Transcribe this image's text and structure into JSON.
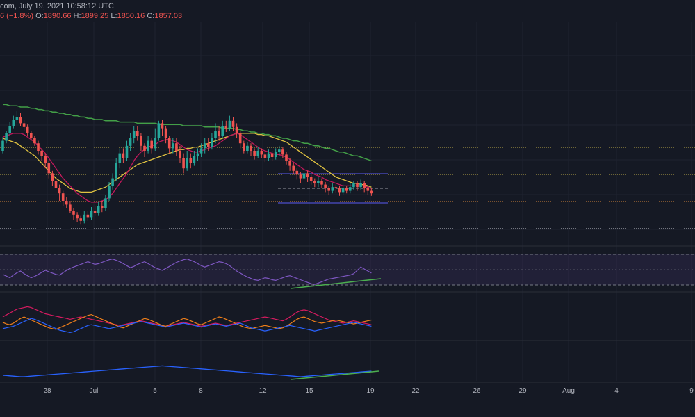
{
  "header": {
    "source_datetime": "com, July 19, 2021 10:58:12 UTC",
    "change": "6 (−1.8%)",
    "open_label": "O:",
    "open": "1890.66",
    "high_label": "H:",
    "high": "1899.25",
    "low_label": "L:",
    "low": "1850.16",
    "close_label": "C:",
    "close": "1857.03"
  },
  "colors": {
    "background": "#151924",
    "grid": "#1f2330",
    "candle_up": "#26a69a",
    "candle_down": "#ef5350",
    "ma_red": "#c2185b",
    "ma_yellow": "#e0c341",
    "ma_green": "#43a047",
    "hline_yellow": "#c8b44a",
    "hline_orange": "#e08a3a",
    "hline_white": "#d1d4dc",
    "channel_blue": "#5b5bf5",
    "rsi_line": "#7e57c2",
    "rsi_band": "#7e57c2",
    "trend_green": "#4caf50",
    "dmi_red": "#d81b60",
    "dmi_orange": "#ef7f1a",
    "dmi_blue": "#2962ff",
    "adx_blue": "#2962ff"
  },
  "chart_data": {
    "type": "candlestick",
    "x_axis_ticks": [
      "28",
      "Jul",
      "5",
      "8",
      "12",
      "15",
      "19",
      "22",
      "26",
      "29",
      "Aug",
      "4",
      "9"
    ],
    "price_candles": [
      [
        0,
        0.6,
        0.68,
        0.58,
        0.71
      ],
      [
        1,
        0.68,
        0.74,
        0.66,
        0.76
      ],
      [
        2,
        0.74,
        0.8,
        0.72,
        0.83
      ],
      [
        3,
        0.8,
        0.85,
        0.78,
        0.88
      ],
      [
        4,
        0.85,
        0.87,
        0.82,
        0.92
      ],
      [
        5,
        0.87,
        0.82,
        0.8,
        0.9
      ],
      [
        6,
        0.82,
        0.79,
        0.76,
        0.85
      ],
      [
        7,
        0.79,
        0.74,
        0.72,
        0.81
      ],
      [
        8,
        0.74,
        0.7,
        0.68,
        0.76
      ],
      [
        9,
        0.7,
        0.66,
        0.64,
        0.72
      ],
      [
        10,
        0.66,
        0.6,
        0.57,
        0.68
      ],
      [
        11,
        0.6,
        0.56,
        0.52,
        0.62
      ],
      [
        12,
        0.56,
        0.5,
        0.46,
        0.58
      ],
      [
        13,
        0.5,
        0.42,
        0.38,
        0.52
      ],
      [
        14,
        0.42,
        0.36,
        0.32,
        0.44
      ],
      [
        15,
        0.36,
        0.3,
        0.28,
        0.39
      ],
      [
        16,
        0.3,
        0.26,
        0.2,
        0.33
      ],
      [
        17,
        0.26,
        0.2,
        0.16,
        0.28
      ],
      [
        18,
        0.2,
        0.17,
        0.14,
        0.23
      ],
      [
        19,
        0.17,
        0.12,
        0.1,
        0.2
      ],
      [
        20,
        0.12,
        0.09,
        0.05,
        0.14
      ],
      [
        21,
        0.09,
        0.06,
        0.03,
        0.11
      ],
      [
        22,
        0.06,
        0.04,
        0.01,
        0.08
      ],
      [
        23,
        0.04,
        0.09,
        0.02,
        0.12
      ],
      [
        24,
        0.09,
        0.07,
        0.04,
        0.12
      ],
      [
        25,
        0.07,
        0.12,
        0.05,
        0.15
      ],
      [
        26,
        0.12,
        0.1,
        0.08,
        0.16
      ],
      [
        27,
        0.1,
        0.16,
        0.08,
        0.19
      ],
      [
        28,
        0.16,
        0.14,
        0.11,
        0.2
      ],
      [
        29,
        0.14,
        0.22,
        0.12,
        0.25
      ],
      [
        30,
        0.22,
        0.32,
        0.2,
        0.35
      ],
      [
        31,
        0.32,
        0.38,
        0.29,
        0.42
      ],
      [
        32,
        0.38,
        0.5,
        0.36,
        0.54
      ],
      [
        33,
        0.5,
        0.58,
        0.46,
        0.62
      ],
      [
        34,
        0.58,
        0.54,
        0.5,
        0.62
      ],
      [
        35,
        0.54,
        0.64,
        0.52,
        0.68
      ],
      [
        36,
        0.64,
        0.7,
        0.6,
        0.74
      ],
      [
        37,
        0.7,
        0.76,
        0.66,
        0.8
      ],
      [
        38,
        0.76,
        0.72,
        0.68,
        0.8
      ],
      [
        39,
        0.72,
        0.64,
        0.6,
        0.74
      ],
      [
        40,
        0.64,
        0.6,
        0.55,
        0.66
      ],
      [
        41,
        0.6,
        0.68,
        0.58,
        0.72
      ],
      [
        42,
        0.68,
        0.62,
        0.58,
        0.7
      ],
      [
        43,
        0.62,
        0.7,
        0.6,
        0.78
      ],
      [
        44,
        0.7,
        0.82,
        0.68,
        0.84
      ],
      [
        45,
        0.82,
        0.78,
        0.72,
        0.85
      ],
      [
        46,
        0.78,
        0.7,
        0.66,
        0.8
      ],
      [
        47,
        0.7,
        0.62,
        0.58,
        0.72
      ],
      [
        48,
        0.62,
        0.66,
        0.58,
        0.7
      ],
      [
        49,
        0.66,
        0.6,
        0.56,
        0.7
      ],
      [
        50,
        0.6,
        0.54,
        0.5,
        0.64
      ],
      [
        51,
        0.54,
        0.46,
        0.42,
        0.58
      ],
      [
        52,
        0.46,
        0.54,
        0.44,
        0.6
      ],
      [
        53,
        0.54,
        0.5,
        0.46,
        0.58
      ],
      [
        54,
        0.5,
        0.56,
        0.48,
        0.6
      ],
      [
        55,
        0.56,
        0.58,
        0.52,
        0.62
      ],
      [
        56,
        0.58,
        0.62,
        0.55,
        0.66
      ],
      [
        57,
        0.62,
        0.66,
        0.58,
        0.7
      ],
      [
        58,
        0.66,
        0.63,
        0.6,
        0.7
      ],
      [
        59,
        0.63,
        0.7,
        0.61,
        0.74
      ],
      [
        60,
        0.7,
        0.76,
        0.66,
        0.82
      ],
      [
        61,
        0.76,
        0.72,
        0.68,
        0.8
      ],
      [
        62,
        0.72,
        0.8,
        0.7,
        0.84
      ],
      [
        63,
        0.8,
        0.78,
        0.75,
        0.84
      ],
      [
        64,
        0.78,
        0.84,
        0.76,
        0.88
      ],
      [
        65,
        0.84,
        0.79,
        0.76,
        0.87
      ],
      [
        66,
        0.79,
        0.74,
        0.7,
        0.82
      ],
      [
        67,
        0.74,
        0.66,
        0.62,
        0.76
      ],
      [
        68,
        0.66,
        0.6,
        0.58,
        0.68
      ],
      [
        69,
        0.6,
        0.64,
        0.58,
        0.67
      ],
      [
        70,
        0.64,
        0.6,
        0.56,
        0.66
      ],
      [
        71,
        0.6,
        0.56,
        0.53,
        0.62
      ],
      [
        72,
        0.56,
        0.6,
        0.54,
        0.63
      ],
      [
        73,
        0.6,
        0.57,
        0.54,
        0.62
      ],
      [
        74,
        0.57,
        0.54,
        0.51,
        0.6
      ],
      [
        75,
        0.54,
        0.58,
        0.52,
        0.61
      ],
      [
        76,
        0.58,
        0.55,
        0.52,
        0.6
      ],
      [
        77,
        0.55,
        0.59,
        0.53,
        0.62
      ],
      [
        78,
        0.59,
        0.61,
        0.56,
        0.64
      ],
      [
        79,
        0.61,
        0.57,
        0.54,
        0.63
      ],
      [
        80,
        0.57,
        0.52,
        0.49,
        0.59
      ],
      [
        81,
        0.52,
        0.48,
        0.44,
        0.54
      ],
      [
        82,
        0.48,
        0.44,
        0.41,
        0.5
      ],
      [
        83,
        0.44,
        0.41,
        0.37,
        0.46
      ],
      [
        84,
        0.41,
        0.38,
        0.34,
        0.43
      ],
      [
        85,
        0.38,
        0.42,
        0.36,
        0.45
      ],
      [
        86,
        0.42,
        0.39,
        0.35,
        0.44
      ],
      [
        87,
        0.39,
        0.36,
        0.33,
        0.41
      ],
      [
        88,
        0.36,
        0.34,
        0.31,
        0.38
      ],
      [
        89,
        0.34,
        0.36,
        0.31,
        0.39
      ],
      [
        90,
        0.36,
        0.33,
        0.3,
        0.38
      ],
      [
        91,
        0.33,
        0.3,
        0.27,
        0.35
      ],
      [
        92,
        0.3,
        0.28,
        0.25,
        0.32
      ],
      [
        93,
        0.28,
        0.31,
        0.26,
        0.34
      ],
      [
        94,
        0.31,
        0.3,
        0.26,
        0.33
      ],
      [
        95,
        0.3,
        0.27,
        0.24,
        0.32
      ],
      [
        96,
        0.27,
        0.3,
        0.25,
        0.33
      ],
      [
        97,
        0.3,
        0.28,
        0.26,
        0.32
      ],
      [
        98,
        0.28,
        0.31,
        0.26,
        0.34
      ],
      [
        99,
        0.31,
        0.34,
        0.29,
        0.36
      ],
      [
        100,
        0.34,
        0.31,
        0.28,
        0.36
      ],
      [
        101,
        0.31,
        0.34,
        0.29,
        0.37
      ],
      [
        102,
        0.34,
        0.3,
        0.27,
        0.36
      ],
      [
        103,
        0.3,
        0.28,
        0.25,
        0.32
      ],
      [
        104,
        0.28,
        0.26,
        0.24,
        0.3
      ]
    ],
    "ma_red": [
      0.71,
      0.72,
      0.73,
      0.74,
      0.74,
      0.74,
      0.73,
      0.71,
      0.69,
      0.67,
      0.64,
      0.61,
      0.58,
      0.54,
      0.5,
      0.46,
      0.42,
      0.38,
      0.35,
      0.32,
      0.29,
      0.26,
      0.24,
      0.22,
      0.2,
      0.19,
      0.19,
      0.19,
      0.2,
      0.21,
      0.23,
      0.26,
      0.3,
      0.34,
      0.38,
      0.42,
      0.47,
      0.52,
      0.56,
      0.59,
      0.61,
      0.63,
      0.64,
      0.65,
      0.67,
      0.68,
      0.69,
      0.69,
      0.68,
      0.67,
      0.65,
      0.63,
      0.61,
      0.6,
      0.59,
      0.59,
      0.6,
      0.61,
      0.62,
      0.63,
      0.64,
      0.66,
      0.68,
      0.7,
      0.72,
      0.73,
      0.74,
      0.73,
      0.71,
      0.69,
      0.67,
      0.65,
      0.63,
      0.61,
      0.6,
      0.59,
      0.58,
      0.57,
      0.57,
      0.56,
      0.55,
      0.53,
      0.51,
      0.49,
      0.47,
      0.45,
      0.44,
      0.43,
      0.41,
      0.4,
      0.39,
      0.37,
      0.36,
      0.35,
      0.34,
      0.33,
      0.32,
      0.32,
      0.32,
      0.32,
      0.32,
      0.32,
      0.32,
      0.31,
      0.3
    ],
    "ma_yellow": [
      0.7,
      0.69,
      0.68,
      0.67,
      0.66,
      0.64,
      0.62,
      0.6,
      0.58,
      0.56,
      0.53,
      0.5,
      0.47,
      0.44,
      0.41,
      0.38,
      0.36,
      0.34,
      0.32,
      0.3,
      0.29,
      0.28,
      0.27,
      0.27,
      0.27,
      0.27,
      0.28,
      0.29,
      0.3,
      0.31,
      0.33,
      0.35,
      0.37,
      0.39,
      0.41,
      0.43,
      0.45,
      0.47,
      0.49,
      0.5,
      0.51,
      0.52,
      0.53,
      0.54,
      0.55,
      0.56,
      0.57,
      0.58,
      0.59,
      0.6,
      0.61,
      0.61,
      0.62,
      0.62,
      0.63,
      0.63,
      0.64,
      0.65,
      0.66,
      0.67,
      0.68,
      0.69,
      0.7,
      0.71,
      0.72,
      0.73,
      0.74,
      0.74,
      0.74,
      0.74,
      0.74,
      0.74,
      0.73,
      0.73,
      0.72,
      0.72,
      0.71,
      0.7,
      0.69,
      0.68,
      0.67,
      0.65,
      0.63,
      0.61,
      0.59,
      0.57,
      0.55,
      0.53,
      0.51,
      0.49,
      0.47,
      0.45,
      0.43,
      0.41,
      0.39,
      0.38,
      0.37,
      0.36,
      0.35,
      0.34,
      0.34,
      0.33,
      0.33,
      0.32,
      0.31
    ],
    "ma_green": [
      0.97,
      0.97,
      0.96,
      0.96,
      0.96,
      0.95,
      0.95,
      0.95,
      0.94,
      0.94,
      0.93,
      0.93,
      0.92,
      0.92,
      0.91,
      0.91,
      0.9,
      0.9,
      0.89,
      0.89,
      0.88,
      0.88,
      0.87,
      0.87,
      0.86,
      0.86,
      0.85,
      0.85,
      0.85,
      0.84,
      0.84,
      0.84,
      0.84,
      0.83,
      0.83,
      0.83,
      0.83,
      0.83,
      0.82,
      0.82,
      0.82,
      0.82,
      0.82,
      0.82,
      0.81,
      0.81,
      0.81,
      0.81,
      0.81,
      0.81,
      0.81,
      0.8,
      0.8,
      0.8,
      0.8,
      0.8,
      0.8,
      0.79,
      0.79,
      0.79,
      0.79,
      0.79,
      0.78,
      0.78,
      0.78,
      0.78,
      0.77,
      0.77,
      0.76,
      0.76,
      0.75,
      0.75,
      0.74,
      0.74,
      0.73,
      0.73,
      0.72,
      0.72,
      0.71,
      0.7,
      0.7,
      0.69,
      0.68,
      0.68,
      0.67,
      0.66,
      0.66,
      0.65,
      0.64,
      0.64,
      0.63,
      0.62,
      0.62,
      0.61,
      0.6,
      0.59,
      0.59,
      0.58,
      0.57,
      0.56,
      0.56,
      0.55,
      0.54,
      0.53,
      0.52
    ],
    "rsi": [
      0.4,
      0.35,
      0.3,
      0.38,
      0.45,
      0.5,
      0.42,
      0.36,
      0.3,
      0.34,
      0.4,
      0.46,
      0.52,
      0.48,
      0.44,
      0.4,
      0.38,
      0.45,
      0.52,
      0.58,
      0.62,
      0.66,
      0.7,
      0.74,
      0.78,
      0.74,
      0.7,
      0.72,
      0.76,
      0.8,
      0.84,
      0.86,
      0.82,
      0.78,
      0.72,
      0.66,
      0.6,
      0.64,
      0.7,
      0.74,
      0.78,
      0.72,
      0.66,
      0.6,
      0.56,
      0.52,
      0.58,
      0.64,
      0.7,
      0.76,
      0.8,
      0.84,
      0.86,
      0.82,
      0.78,
      0.72,
      0.66,
      0.62,
      0.66,
      0.7,
      0.74,
      0.78,
      0.76,
      0.72,
      0.66,
      0.58,
      0.5,
      0.44,
      0.38,
      0.32,
      0.28,
      0.24,
      0.22,
      0.26,
      0.3,
      0.28,
      0.24,
      0.22,
      0.26,
      0.3,
      0.34,
      0.36,
      0.32,
      0.28,
      0.24,
      0.2,
      0.16,
      0.12,
      0.1,
      0.14,
      0.18,
      0.22,
      0.26,
      0.28,
      0.3,
      0.32,
      0.34,
      0.36,
      0.38,
      0.42,
      0.52,
      0.62,
      0.56,
      0.5,
      0.44
    ],
    "dmi_red": [
      0.5,
      0.55,
      0.6,
      0.65,
      0.7,
      0.72,
      0.74,
      0.76,
      0.74,
      0.7,
      0.66,
      0.62,
      0.58,
      0.56,
      0.54,
      0.52,
      0.5,
      0.48,
      0.46,
      0.44,
      0.46,
      0.48,
      0.5,
      0.48,
      0.46,
      0.44,
      0.42,
      0.4,
      0.38,
      0.36,
      0.34,
      0.32,
      0.3,
      0.28,
      0.3,
      0.32,
      0.34,
      0.36,
      0.38,
      0.4,
      0.38,
      0.36,
      0.34,
      0.32,
      0.3,
      0.28,
      0.26,
      0.28,
      0.3,
      0.32,
      0.34,
      0.36,
      0.34,
      0.32,
      0.3,
      0.28,
      0.26,
      0.28,
      0.3,
      0.32,
      0.34,
      0.32,
      0.3,
      0.28,
      0.3,
      0.32,
      0.34,
      0.36,
      0.38,
      0.4,
      0.42,
      0.44,
      0.46,
      0.48,
      0.5,
      0.48,
      0.46,
      0.44,
      0.42,
      0.4,
      0.44,
      0.5,
      0.56,
      0.62,
      0.66,
      0.68,
      0.66,
      0.62,
      0.58,
      0.54,
      0.5,
      0.46,
      0.42,
      0.4,
      0.38,
      0.36,
      0.34,
      0.36,
      0.38,
      0.4,
      0.38,
      0.36,
      0.34,
      0.32,
      0.3
    ],
    "dmi_orange": [
      0.36,
      0.32,
      0.3,
      0.34,
      0.4,
      0.46,
      0.5,
      0.46,
      0.42,
      0.38,
      0.34,
      0.3,
      0.26,
      0.22,
      0.2,
      0.18,
      0.22,
      0.26,
      0.3,
      0.34,
      0.38,
      0.42,
      0.46,
      0.5,
      0.54,
      0.56,
      0.52,
      0.48,
      0.44,
      0.4,
      0.36,
      0.32,
      0.28,
      0.24,
      0.22,
      0.26,
      0.3,
      0.34,
      0.38,
      0.42,
      0.46,
      0.44,
      0.4,
      0.36,
      0.32,
      0.28,
      0.26,
      0.3,
      0.34,
      0.38,
      0.42,
      0.46,
      0.44,
      0.4,
      0.36,
      0.32,
      0.3,
      0.34,
      0.38,
      0.42,
      0.46,
      0.5,
      0.48,
      0.44,
      0.4,
      0.36,
      0.32,
      0.28,
      0.24,
      0.22,
      0.2,
      0.22,
      0.24,
      0.26,
      0.28,
      0.26,
      0.24,
      0.22,
      0.2,
      0.22,
      0.26,
      0.32,
      0.38,
      0.44,
      0.48,
      0.5,
      0.46,
      0.42,
      0.38,
      0.36,
      0.34,
      0.36,
      0.38,
      0.4,
      0.42,
      0.4,
      0.38,
      0.36,
      0.34,
      0.32,
      0.34,
      0.36,
      0.38,
      0.4,
      0.42
    ],
    "dmi_blue": [
      0.2,
      0.22,
      0.24,
      0.26,
      0.3,
      0.34,
      0.38,
      0.42,
      0.46,
      0.44,
      0.4,
      0.36,
      0.32,
      0.28,
      0.24,
      0.2,
      0.16,
      0.14,
      0.12,
      0.1,
      0.12,
      0.16,
      0.2,
      0.24,
      0.28,
      0.3,
      0.28,
      0.26,
      0.24,
      0.22,
      0.2,
      0.22,
      0.24,
      0.26,
      0.28,
      0.3,
      0.32,
      0.34,
      0.36,
      0.38,
      0.36,
      0.34,
      0.32,
      0.3,
      0.28,
      0.26,
      0.24,
      0.26,
      0.28,
      0.3,
      0.32,
      0.34,
      0.32,
      0.3,
      0.28,
      0.26,
      0.24,
      0.26,
      0.28,
      0.3,
      0.32,
      0.3,
      0.28,
      0.26,
      0.28,
      0.3,
      0.32,
      0.34,
      0.3,
      0.26,
      0.22,
      0.2,
      0.18,
      0.16,
      0.14,
      0.16,
      0.18,
      0.2,
      0.22,
      0.24,
      0.26,
      0.28,
      0.26,
      0.24,
      0.22,
      0.2,
      0.18,
      0.16,
      0.14,
      0.16,
      0.18,
      0.2,
      0.22,
      0.24,
      0.26,
      0.28,
      0.3,
      0.32,
      0.34,
      0.36,
      0.34,
      0.32,
      0.3,
      0.28,
      0.26
    ],
    "adx": [
      0.2,
      0.18,
      0.16,
      0.14,
      0.12,
      0.1,
      0.1,
      0.12,
      0.14,
      0.16,
      0.18,
      0.2,
      0.22,
      0.24,
      0.26,
      0.28,
      0.3,
      0.32,
      0.34,
      0.36,
      0.38,
      0.4,
      0.42,
      0.44,
      0.46,
      0.48,
      0.5,
      0.52,
      0.54,
      0.56,
      0.58,
      0.6,
      0.62,
      0.64,
      0.66,
      0.68,
      0.7,
      0.72,
      0.74,
      0.76,
      0.78,
      0.8,
      0.82,
      0.84,
      0.86,
      0.88,
      0.86,
      0.84,
      0.82,
      0.8,
      0.78,
      0.76,
      0.74,
      0.72,
      0.7,
      0.68,
      0.66,
      0.64,
      0.62,
      0.6,
      0.58,
      0.56,
      0.54,
      0.52,
      0.5,
      0.48,
      0.46,
      0.44,
      0.42,
      0.4,
      0.38,
      0.36,
      0.34,
      0.32,
      0.3,
      0.28,
      0.26,
      0.24,
      0.22,
      0.2,
      0.18,
      0.16,
      0.14,
      0.12,
      0.1,
      0.12,
      0.14,
      0.16,
      0.18,
      0.2,
      0.22,
      0.24,
      0.26,
      0.28,
      0.3,
      0.32,
      0.34,
      0.36,
      0.38,
      0.4,
      0.42,
      0.44,
      0.46,
      0.48,
      0.5
    ]
  }
}
